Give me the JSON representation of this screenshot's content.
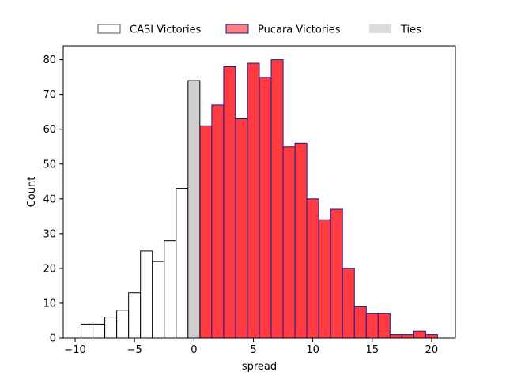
{
  "chart_data": {
    "type": "bar",
    "xlabel": "spread",
    "ylabel": "Count",
    "xlim": [
      -11,
      22
    ],
    "ylim": [
      0,
      84
    ],
    "xticks": [
      -10,
      -5,
      0,
      5,
      10,
      15,
      20
    ],
    "yticks": [
      0,
      10,
      20,
      30,
      40,
      50,
      60,
      70,
      80
    ],
    "bin_width": 1,
    "legend_position": "top-center-outside",
    "series": [
      {
        "name": "CASI Victories",
        "fill": "#ffffff",
        "edge": "#000000",
        "x": [
          -9,
          -8,
          -7,
          -6,
          -5,
          -4,
          -3,
          -2,
          -1
        ],
        "values": [
          4,
          4,
          6,
          8,
          13,
          25,
          22,
          28,
          43
        ]
      },
      {
        "name": "Pucara Victories",
        "fill": "#ff3b41",
        "edge": "#1a1a8c",
        "x": [
          1,
          2,
          3,
          4,
          5,
          6,
          7,
          8,
          9,
          10,
          11,
          12,
          13,
          14,
          15,
          16,
          17,
          18,
          19,
          20
        ],
        "values": [
          61,
          67,
          78,
          63,
          79,
          75,
          80,
          55,
          56,
          40,
          34,
          37,
          20,
          9,
          7,
          7,
          1,
          1,
          2,
          1
        ]
      },
      {
        "name": "Ties",
        "fill": "#cfcfcf",
        "edge": "#000000",
        "x": [
          0
        ],
        "values": [
          74
        ]
      }
    ],
    "legend": [
      {
        "label": "CASI Victories",
        "fill": "#ffffff",
        "edge": "#555555"
      },
      {
        "label": "Pucara Victories",
        "fill": "#ff7f84",
        "edge": "#1a1a8c"
      },
      {
        "label": "Ties",
        "fill": "#dcdcdc",
        "edge": "none"
      }
    ]
  }
}
